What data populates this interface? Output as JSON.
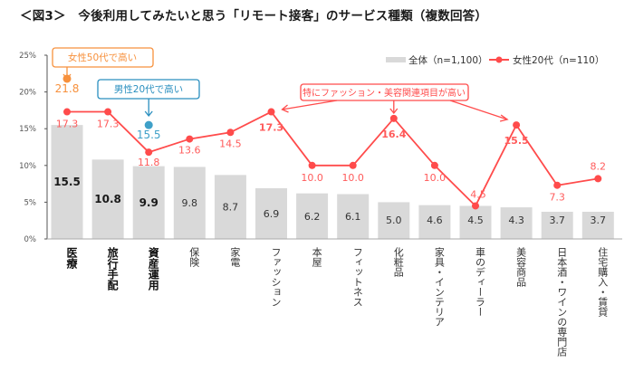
{
  "title": "＜図3＞　今後利用してみたいと思う「リモート接客」のサービス種類（複数回答）",
  "chart_data": {
    "type": "bar",
    "title": "＜図3＞　今後利用してみたいと思う「リモート接客」のサービス種類（複数回答）",
    "xlabel": "",
    "ylabel": "",
    "ylim": [
      0,
      25
    ],
    "yticks": [
      0,
      5,
      10,
      15,
      20,
      25
    ],
    "ytick_labels": [
      "0%",
      "5%",
      "10%",
      "15%",
      "20%",
      "25%"
    ],
    "grid": false,
    "legend_position": "top-right",
    "categories": [
      "医療",
      "旅行手配",
      "資産運用",
      "保険",
      "家電",
      "ファッション",
      "本屋",
      "フィットネス",
      "化粧品",
      "家具・インテリア",
      "車のディーラー",
      "美容商品",
      "日本酒・ワインの専門店",
      "住宅購入・賃貸"
    ],
    "bold_categories": [
      "医療",
      "旅行手配",
      "資産運用"
    ],
    "series": [
      {
        "name": "全体（n=1,100）",
        "type": "bar",
        "color": "#d9d9d9",
        "values": [
          15.5,
          10.8,
          9.9,
          9.8,
          8.7,
          6.9,
          6.2,
          6.1,
          5.0,
          4.6,
          4.5,
          4.3,
          3.7,
          3.7
        ],
        "labels": [
          "15.5",
          "10.8",
          "9.9",
          "9.8",
          "8.7",
          "6.9",
          "6.2",
          "6.1",
          "5.0",
          "4.6",
          "4.5",
          "4.3",
          "3.7",
          "3.7"
        ]
      },
      {
        "name": "女性20代（n=110）",
        "type": "line",
        "color": "#ff4b4b",
        "values": [
          17.3,
          17.3,
          11.8,
          13.6,
          14.5,
          17.3,
          10.0,
          10.0,
          16.4,
          10.0,
          4.5,
          15.5,
          7.3,
          8.2
        ],
        "labels": [
          "17.3",
          "17.3",
          "11.8",
          "13.6",
          "14.5",
          "17.3",
          "10.0",
          "10.0",
          "16.4",
          "10.0",
          "4.5",
          "15.5",
          "7.3",
          "8.2"
        ],
        "bold_indices": [
          5,
          8,
          11
        ]
      }
    ],
    "extra_points": [
      {
        "name": "女性50代",
        "category": "医療",
        "value": 21.8,
        "label": "21.8",
        "color": "#f7913d"
      },
      {
        "name": "男性20代",
        "category": "資産運用",
        "value": 15.5,
        "label": "15.5",
        "color": "#3fa0c8"
      }
    ],
    "annotations": [
      {
        "text": "女性50代で高い",
        "color": "#f7913d",
        "target": "医療"
      },
      {
        "text": "男性20代で高い",
        "color": "#2a8fbf",
        "target": "資産運用"
      },
      {
        "text": "特にファッション・美容関連項目が高い",
        "color": "#ff4b4b",
        "targets": [
          "ファッション",
          "化粧品",
          "美容商品"
        ]
      }
    ]
  },
  "legend": {
    "all_label": "全体（n=1,100）",
    "female20_label": "女性20代（n=110）"
  }
}
